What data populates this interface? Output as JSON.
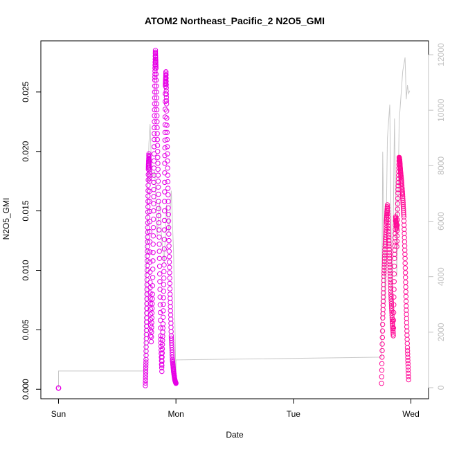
{
  "chart_data": {
    "type": "scatter",
    "title": "ATOM2 Northeast_Pacific_2 N2O5_GMI",
    "xlabel": "Date",
    "ylabel": "N2O5_GMI",
    "x_ticks": [
      {
        "label": "Sun",
        "day": 0
      },
      {
        "label": "Mon",
        "day": 1
      },
      {
        "label": "Tue",
        "day": 2
      },
      {
        "label": "Wed",
        "day": 3
      }
    ],
    "xlim_days": [
      -0.15,
      3.15
    ],
    "ylim": [
      -0.0008,
      0.0293
    ],
    "y_ticks": [
      0.0,
      0.005,
      0.01,
      0.015,
      0.02,
      0.025
    ],
    "y_tick_labels": [
      "0.000",
      "0.005",
      "0.010",
      "0.015",
      "0.020",
      "0.025"
    ],
    "right_axis": {
      "ylim": [
        -400,
        12500
      ],
      "ticks": [
        0,
        2000,
        4000,
        6000,
        8000,
        10000,
        12000
      ],
      "tick_labels": [
        "0",
        "2000",
        "4000",
        "6000",
        "8000",
        "10000",
        "12000"
      ],
      "color": "#c0c0c0"
    },
    "colors": {
      "segment1_points": "#e600e6",
      "segment2_points": "#ff0a96",
      "altitude_line": "#c8c8c8"
    },
    "series": [
      {
        "clusters": [
          {
            "x": [
              0.0,
              0.0
            ],
            "y": [
              0.0001,
              0.0001
            ]
          },
          {
            "x": [
              0.74,
              0.745,
              0.75,
              0.755,
              0.76,
              0.765,
              0.77,
              0.775,
              0.78,
              0.785
            ],
            "y": [
              0.0003,
              0.0025,
              0.006,
              0.01,
              0.014,
              0.0185,
              0.0198,
              0.0175,
              0.009,
              0.0045
            ]
          },
          {
            "x": [
              0.79,
              0.8,
              0.81,
              0.815,
              0.82,
              0.825,
              0.83,
              0.84,
              0.85,
              0.86,
              0.87,
              0.88
            ],
            "y": [
              0.004,
              0.008,
              0.015,
              0.021,
              0.026,
              0.0285,
              0.027,
              0.022,
              0.017,
              0.011,
              0.0045,
              0.0015
            ]
          },
          {
            "x": [
              0.88,
              0.89,
              0.9,
              0.905,
              0.91,
              0.915,
              0.92,
              0.93,
              0.94,
              0.95,
              0.96,
              0.97,
              0.98,
              0.99,
              1.0
            ],
            "y": [
              0.002,
              0.0055,
              0.011,
              0.019,
              0.0255,
              0.0267,
              0.024,
              0.018,
              0.0125,
              0.008,
              0.0045,
              0.0025,
              0.0015,
              0.0008,
              0.0005
            ]
          }
        ]
      },
      {
        "clusters": [
          {
            "x": [
              2.75,
              2.76,
              2.77,
              2.78,
              2.79,
              2.8,
              2.81,
              2.82,
              2.83,
              2.84,
              2.85,
              2.86,
              2.87,
              2.88
            ],
            "y": [
              0.0005,
              0.006,
              0.0095,
              0.012,
              0.014,
              0.0155,
              0.013,
              0.0105,
              0.008,
              0.006,
              0.0045,
              0.011,
              0.0145,
              0.0135
            ]
          },
          {
            "x": [
              2.88,
              2.89,
              2.9,
              2.905,
              2.91,
              2.92,
              2.93,
              2.94,
              2.95,
              2.96,
              2.97,
              2.98
            ],
            "y": [
              0.012,
              0.0165,
              0.0195,
              0.0192,
              0.0185,
              0.0175,
              0.0162,
              0.0145,
              0.011,
              0.007,
              0.0035,
              0.0008
            ]
          }
        ]
      }
    ],
    "altitude_series": {
      "x": [
        0.0,
        0.0,
        0.74,
        0.74,
        0.745,
        0.76,
        0.77,
        0.78,
        0.79,
        0.8,
        0.82,
        0.84,
        0.86,
        0.88,
        0.9,
        0.92,
        0.94,
        0.96,
        0.98,
        1.0,
        1.0,
        2.75,
        2.76,
        2.78,
        2.8,
        2.82,
        2.84,
        2.86,
        2.88,
        2.9,
        2.93,
        2.95,
        2.96,
        2.97,
        2.98,
        2.99
      ],
      "y": [
        0,
        600,
        600,
        2100,
        3500,
        7200,
        8800,
        9500,
        8200,
        7600,
        7800,
        5500,
        6700,
        5300,
        4500,
        6600,
        5600,
        7100,
        4800,
        200,
        1000,
        1100,
        8500,
        3000,
        9000,
        10200,
        2500,
        9700,
        4000,
        9600,
        11400,
        11900,
        10400,
        10900,
        10600,
        10700
      ]
    }
  }
}
